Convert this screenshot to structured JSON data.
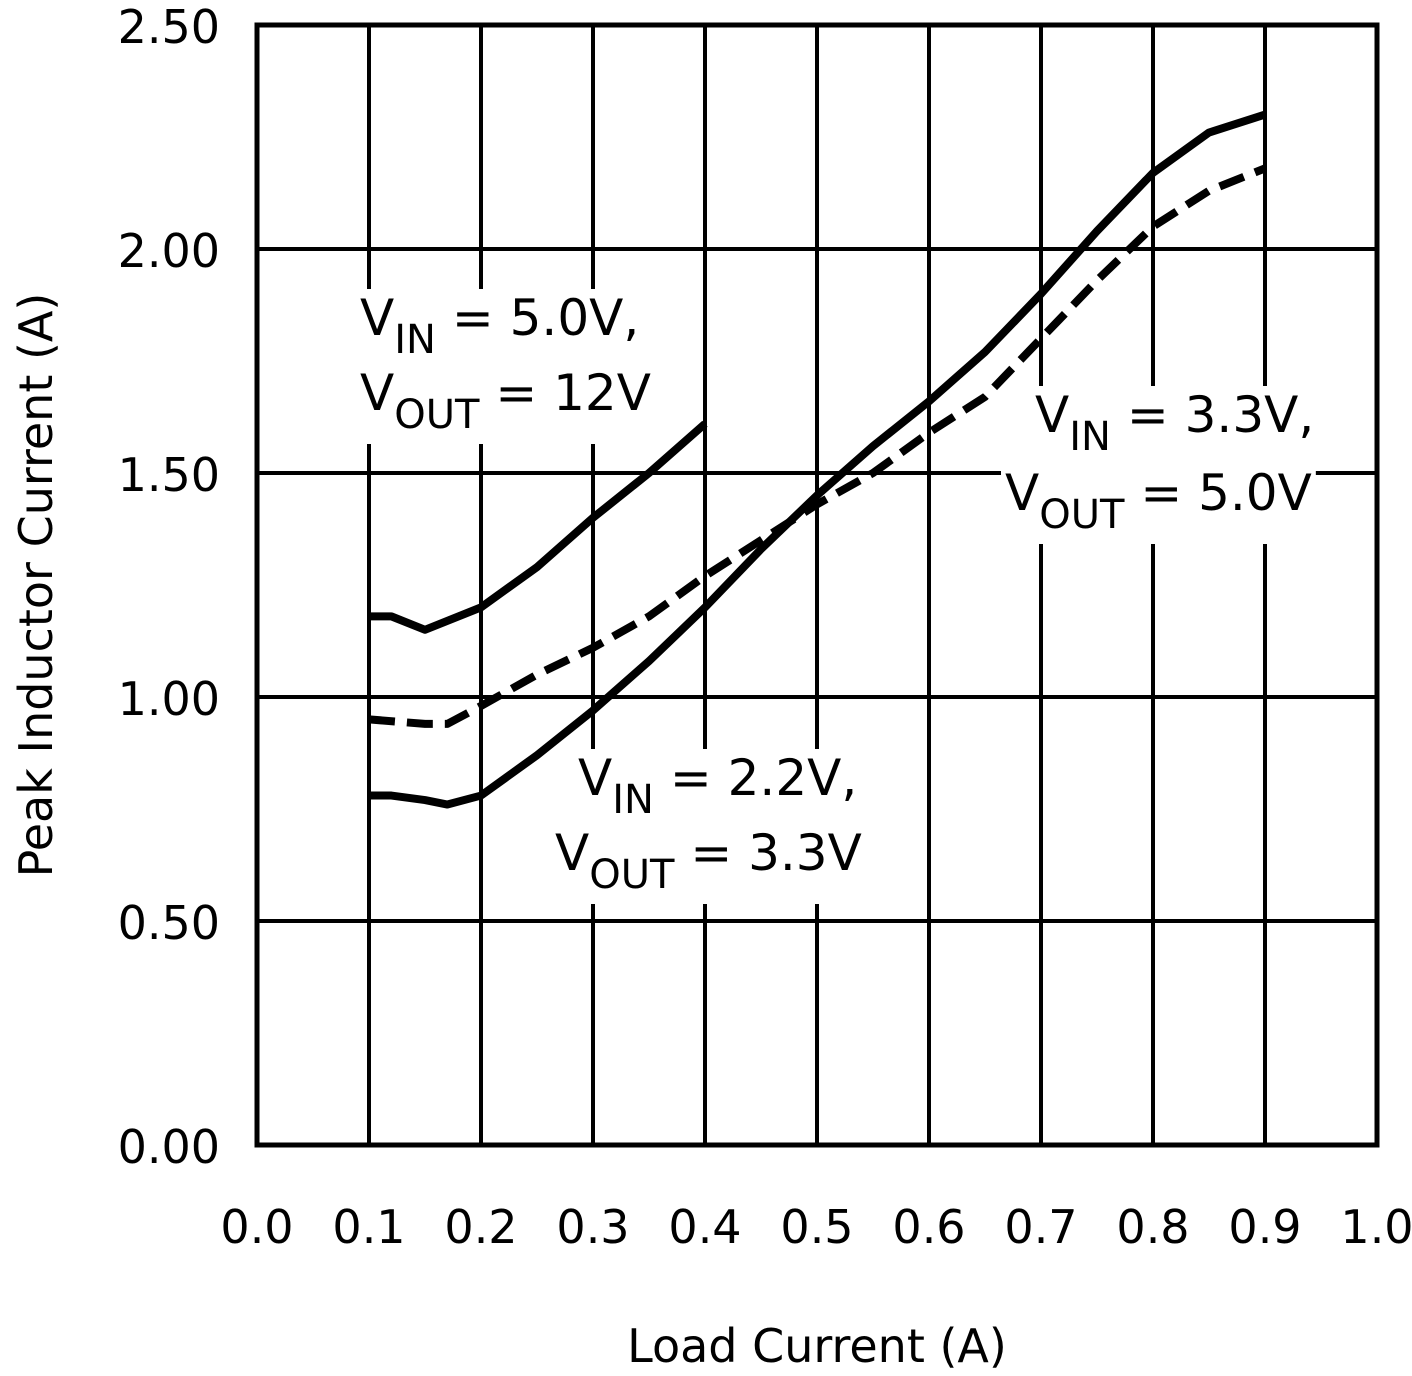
{
  "chart_data": {
    "type": "line",
    "xlabel": "Load Current (A)",
    "ylabel": "Peak Inductor Current (A)",
    "xlim": [
      0,
      1
    ],
    "ylim": [
      0,
      2.5
    ],
    "xticks": [
      {
        "value": 0,
        "label": "0.0"
      },
      0.1,
      0.2,
      0.3,
      0.4,
      0.5,
      0.6,
      0.7,
      0.8,
      0.9,
      {
        "value": 1,
        "label": "1.0"
      }
    ],
    "yticks": [
      {
        "value": 0,
        "label": "0.00"
      },
      {
        "value": 0.5,
        "label": "0.50"
      },
      {
        "value": 1,
        "label": "1.00"
      },
      {
        "value": 1.5,
        "label": "1.50"
      },
      {
        "value": 2,
        "label": "2.00"
      },
      {
        "value": 2.5,
        "label": "2.50"
      }
    ],
    "grid": true,
    "series": [
      {
        "color": "#000000",
        "dash": false,
        "x": [
          0.1,
          0.12,
          0.15,
          0.2,
          0.25,
          0.3,
          0.35,
          0.4
        ],
        "values": [
          1.18,
          1.18,
          1.15,
          1.2,
          1.29,
          1.4,
          1.5,
          1.61
        ]
      },
      {
        "color": "#000000",
        "dash": false,
        "x": [
          0.1,
          0.12,
          0.15,
          0.17,
          0.2,
          0.25,
          0.3,
          0.35,
          0.4,
          0.45,
          0.5,
          0.55,
          0.6,
          0.65,
          0.7,
          0.75,
          0.8,
          0.85,
          0.9
        ],
        "values": [
          0.78,
          0.78,
          0.77,
          0.76,
          0.78,
          0.87,
          0.97,
          1.08,
          1.2,
          1.33,
          1.45,
          1.56,
          1.66,
          1.77,
          1.9,
          2.04,
          2.17,
          2.26,
          2.3
        ]
      },
      {
        "color": "#000000",
        "dash": true,
        "x": [
          0.1,
          0.15,
          0.17,
          0.2,
          0.25,
          0.3,
          0.35,
          0.4,
          0.45,
          0.5,
          0.55,
          0.6,
          0.65,
          0.7,
          0.75,
          0.8,
          0.85,
          0.9
        ],
        "values": [
          0.95,
          0.94,
          0.94,
          0.98,
          1.05,
          1.11,
          1.18,
          1.27,
          1.35,
          1.43,
          1.5,
          1.59,
          1.67,
          1.8,
          1.93,
          2.05,
          2.13,
          2.18
        ]
      }
    ],
    "annotations": [
      [
        [
          "V",
          "IN",
          " = 5.0V,"
        ],
        [
          "V",
          "OUT",
          " = 12V"
        ]
      ],
      [
        [
          "V",
          "IN",
          " = 3.3V,"
        ],
        [
          "V",
          "OUT",
          " = 5.0V"
        ]
      ],
      [
        [
          "V",
          "IN",
          " = 2.2V,"
        ],
        [
          "V",
          "OUT",
          " = 3.3V"
        ]
      ]
    ]
  }
}
